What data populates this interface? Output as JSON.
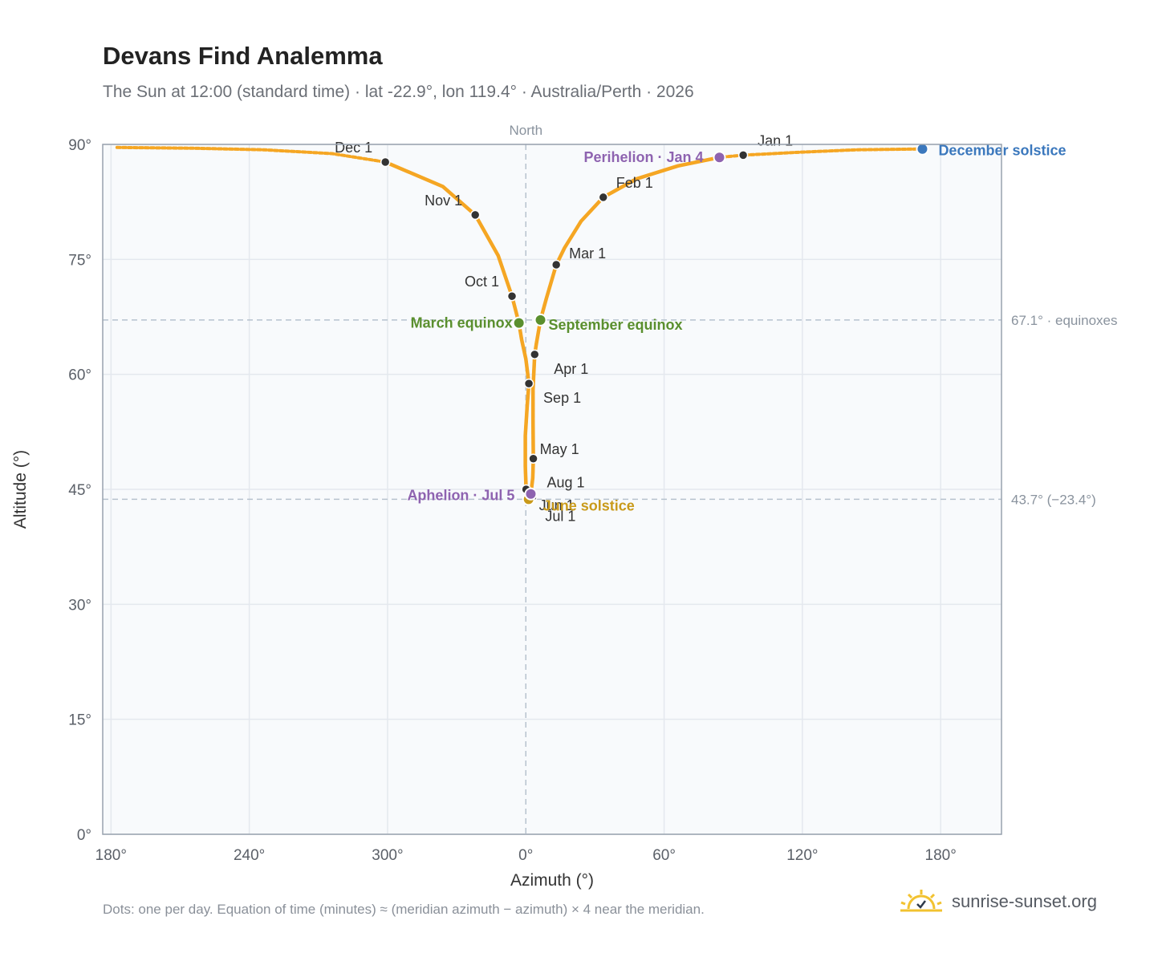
{
  "header": {
    "title": "Devans Find Analemma",
    "subtitle": "The Sun at 12:00 (standard time) · lat -22.9°, lon 119.4° · Australia/Perth · 2026"
  },
  "footer": {
    "note": "Dots: one per day. Equation of time (minutes) ≈ (meridian azimuth − azimuth) × 4 near the meridian.",
    "brand": "sunrise-sunset.org"
  },
  "colors": {
    "curve": "#f5a623",
    "month_dot": "#333333",
    "equinox": "#5a8f2e",
    "solstice_june": "#c99a1a",
    "solstice_december": "#3b78bd",
    "apsis": "#8e63b0",
    "reference_line": "#b6c2ce",
    "plot_bg": "#f8fafc",
    "grid": "#e4e8ee",
    "frame": "#98a2ae"
  },
  "chart_data": {
    "type": "scatter",
    "title": "Devans Find Analemma",
    "xlabel": "Azimuth (°)",
    "ylabel": "Altitude (°)",
    "xlim": [
      -153,
      172
    ],
    "ylim": [
      0,
      90
    ],
    "x_ticks": [
      -150,
      -100,
      -50,
      0,
      50,
      100,
      150
    ],
    "x_tick_labels": [
      "180°",
      "240°",
      "300°",
      "0°",
      "60°",
      "120°",
      "180°"
    ],
    "y_ticks": [
      0,
      15,
      30,
      45,
      60,
      75,
      90
    ],
    "y_tick_labels": [
      "0°",
      "15°",
      "30°",
      "45°",
      "60°",
      "75°",
      "90°"
    ],
    "grid": true,
    "meridian": {
      "x": 0,
      "label": "North"
    },
    "reference_lines": [
      {
        "y": 67.1,
        "label": "67.1° · equinoxes"
      },
      {
        "y": 43.7,
        "label": "43.7° (−23.4°)"
      }
    ],
    "month_points": [
      {
        "label": "Jan 1",
        "x": 78.6,
        "y": 88.6
      },
      {
        "label": "Feb 1",
        "x": 28.0,
        "y": 83.1
      },
      {
        "label": "Mar 1",
        "x": 11.0,
        "y": 74.3
      },
      {
        "label": "Apr 1",
        "x": 3.2,
        "y": 62.6
      },
      {
        "label": "May 1",
        "x": 2.7,
        "y": 49.0
      },
      {
        "label": "Jun 1",
        "x": 0.1,
        "y": 45.0
      },
      {
        "label": "Jul 1",
        "x": 1.2,
        "y": 43.8
      },
      {
        "label": "Aug 1",
        "x": 2.4,
        "y": 44.0
      },
      {
        "label": "Sep 1",
        "x": 1.1,
        "y": 58.8
      },
      {
        "label": "Oct 1",
        "x": -5.0,
        "y": 70.2
      },
      {
        "label": "Nov 1",
        "x": -18.3,
        "y": 80.8
      },
      {
        "label": "Dec 1",
        "x": -50.8,
        "y": 87.7
      }
    ],
    "event_points": [
      {
        "label": "March equinox",
        "x": -2.5,
        "y": 66.7,
        "color": "#5a8f2e"
      },
      {
        "label": "September equinox",
        "x": 5.3,
        "y": 67.1,
        "color": "#5a8f2e"
      },
      {
        "label": "June solstice",
        "x": 1.0,
        "y": 43.7,
        "color": "#c99a1a"
      },
      {
        "label": "December solstice",
        "x": 143.4,
        "y": 89.4,
        "color": "#3b78bd"
      },
      {
        "label": "Perihelion · Jan 4",
        "x": 70.0,
        "y": 88.3,
        "color": "#8e63b0"
      },
      {
        "label": "Aphelion · Jul 5",
        "x": 1.8,
        "y": 44.4,
        "color": "#8e63b0"
      }
    ],
    "curve_path": [
      {
        "x": 143.4,
        "y": 89.4
      },
      {
        "x": 120,
        "y": 89.3
      },
      {
        "x": 100,
        "y": 89.0
      },
      {
        "x": 78.6,
        "y": 88.6
      },
      {
        "x": 70.0,
        "y": 88.3
      },
      {
        "x": 55,
        "y": 87.2
      },
      {
        "x": 40,
        "y": 85.5
      },
      {
        "x": 28.0,
        "y": 83.1
      },
      {
        "x": 20,
        "y": 80.0
      },
      {
        "x": 14,
        "y": 76.5
      },
      {
        "x": 11.0,
        "y": 74.3
      },
      {
        "x": 7.5,
        "y": 70.0
      },
      {
        "x": 5.3,
        "y": 67.1
      },
      {
        "x": 3.8,
        "y": 64.0
      },
      {
        "x": 3.2,
        "y": 62.6
      },
      {
        "x": 2.6,
        "y": 58.0
      },
      {
        "x": 2.6,
        "y": 54.0
      },
      {
        "x": 2.7,
        "y": 49.0
      },
      {
        "x": 2.5,
        "y": 46.5
      },
      {
        "x": 1.8,
        "y": 44.4
      },
      {
        "x": 1.2,
        "y": 43.8
      },
      {
        "x": 1.0,
        "y": 43.7
      },
      {
        "x": 0.4,
        "y": 44.0
      },
      {
        "x": 0.1,
        "y": 45.0
      },
      {
        "x": -0.2,
        "y": 48.0
      },
      {
        "x": -0.2,
        "y": 52.0
      },
      {
        "x": 0.5,
        "y": 56.0
      },
      {
        "x": 1.1,
        "y": 58.8
      },
      {
        "x": 0.0,
        "y": 62.0
      },
      {
        "x": -1.5,
        "y": 64.5
      },
      {
        "x": -2.5,
        "y": 66.7
      },
      {
        "x": -5.0,
        "y": 70.2
      },
      {
        "x": -10,
        "y": 75.5
      },
      {
        "x": -18.3,
        "y": 80.8
      },
      {
        "x": -30,
        "y": 84.5
      },
      {
        "x": -50.8,
        "y": 87.7
      },
      {
        "x": -70,
        "y": 88.8
      },
      {
        "x": -95,
        "y": 89.3
      },
      {
        "x": -120,
        "y": 89.5
      },
      {
        "x": -148,
        "y": 89.6
      }
    ]
  }
}
